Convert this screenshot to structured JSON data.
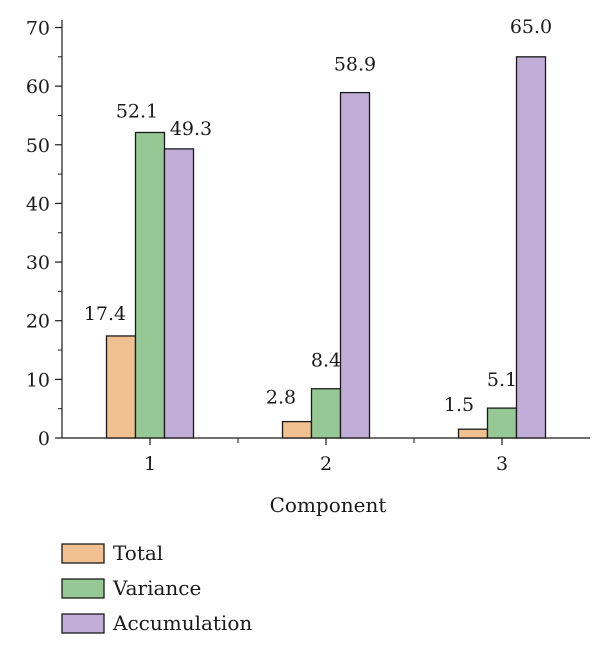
{
  "chart_data": {
    "type": "bar",
    "xlabel": "Component",
    "ylabel": "",
    "ylim": [
      0,
      70
    ],
    "yticks": [
      0,
      10,
      20,
      30,
      40,
      50,
      60,
      70
    ],
    "categories": [
      "1",
      "2",
      "3"
    ],
    "series": [
      {
        "name": "Total",
        "color": "#f0c090",
        "values": [
          17.4,
          2.8,
          1.5
        ]
      },
      {
        "name": "Variance",
        "color": "#96c896",
        "values": [
          52.1,
          8.4,
          5.1
        ]
      },
      {
        "name": "Accumulation",
        "color": "#c0aed8",
        "values": [
          49.3,
          58.9,
          65.0
        ]
      }
    ],
    "data_labels": [
      [
        "17.4",
        "2.8",
        "1.5"
      ],
      [
        "52.1",
        "8.4",
        "5.1"
      ],
      [
        "49.3",
        "58.9",
        "65.0"
      ]
    ],
    "legend_position": "bottom-left",
    "grid": false
  }
}
